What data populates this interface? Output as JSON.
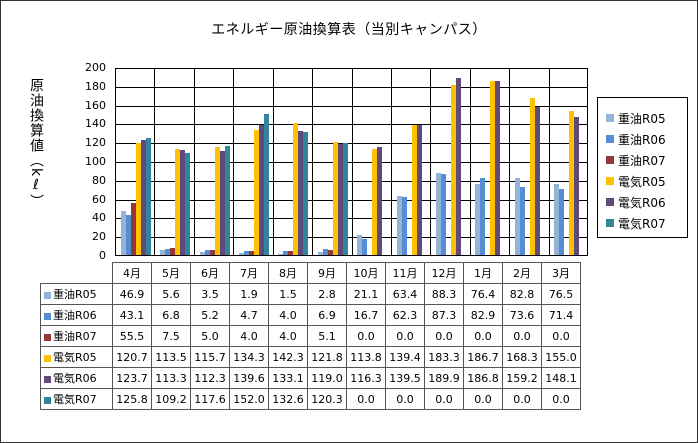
{
  "title": "エネルギー原油換算表（当別キャンパス）",
  "y_axis_label": "原油換算値（kℓ）",
  "y_ticks": [
    "200",
    "180",
    "160",
    "140",
    "120",
    "100",
    "80",
    "60",
    "40",
    "20",
    "0"
  ],
  "chart_data": {
    "type": "bar",
    "title": "エネルギー原油換算表（当別キャンパス）",
    "xlabel": "",
    "ylabel": "原油換算値（kℓ）",
    "ylim": [
      0,
      200
    ],
    "grid": true,
    "legend_position": "right",
    "categories": [
      "4月",
      "5月",
      "6月",
      "7月",
      "8月",
      "9月",
      "10月",
      "11月",
      "12月",
      "1月",
      "2月",
      "3月"
    ],
    "series": [
      {
        "name": "重油R05",
        "color": "#95B3D7",
        "values": [
          46.9,
          5.6,
          3.5,
          1.9,
          1.5,
          2.8,
          21.1,
          63.4,
          88.3,
          76.4,
          82.8,
          76.5
        ]
      },
      {
        "name": "重油R06",
        "color": "#558ED5",
        "values": [
          43.1,
          6.8,
          5.2,
          4.7,
          4.0,
          6.9,
          16.7,
          62.3,
          87.3,
          82.9,
          73.6,
          71.4
        ]
      },
      {
        "name": "重油R07",
        "color": "#953735",
        "values": [
          55.5,
          7.5,
          5.0,
          4.0,
          4.0,
          5.1,
          0.0,
          0.0,
          0.0,
          0.0,
          0.0,
          0.0
        ]
      },
      {
        "name": "電気R05",
        "color": "#FFC000",
        "values": [
          120.7,
          113.5,
          115.7,
          134.3,
          142.3,
          121.8,
          113.8,
          139.4,
          183.3,
          186.7,
          168.3,
          155.0
        ]
      },
      {
        "name": "電気R06",
        "color": "#604A7B",
        "values": [
          123.7,
          113.3,
          112.3,
          139.6,
          133.1,
          119.0,
          116.3,
          139.5,
          189.9,
          186.8,
          159.2,
          148.1
        ]
      },
      {
        "name": "電気R07",
        "color": "#31849B",
        "values": [
          125.8,
          109.2,
          117.6,
          152.0,
          132.6,
          120.3,
          0.0,
          0.0,
          0.0,
          0.0,
          0.0,
          0.0
        ]
      }
    ]
  },
  "table": {
    "columns": [
      "4月",
      "5月",
      "6月",
      "7月",
      "8月",
      "9月",
      "10月",
      "11月",
      "12月",
      "1月",
      "2月",
      "3月"
    ],
    "rows": [
      {
        "label": "重油R05",
        "color": "#95B3D7",
        "cells": [
          "46.9",
          "5.6",
          "3.5",
          "1.9",
          "1.5",
          "2.8",
          "21.1",
          "63.4",
          "88.3",
          "76.4",
          "82.8",
          "76.5"
        ]
      },
      {
        "label": "重油R06",
        "color": "#558ED5",
        "cells": [
          "43.1",
          "6.8",
          "5.2",
          "4.7",
          "4.0",
          "6.9",
          "16.7",
          "62.3",
          "87.3",
          "82.9",
          "73.6",
          "71.4"
        ]
      },
      {
        "label": "重油R07",
        "color": "#953735",
        "cells": [
          "55.5",
          "7.5",
          "5.0",
          "4.0",
          "4.0",
          "5.1",
          "0.0",
          "0.0",
          "0.0",
          "0.0",
          "0.0",
          "0.0"
        ]
      },
      {
        "label": "電気R05",
        "color": "#FFC000",
        "cells": [
          "120.7",
          "113.5",
          "115.7",
          "134.3",
          "142.3",
          "121.8",
          "113.8",
          "139.4",
          "183.3",
          "186.7",
          "168.3",
          "155.0"
        ]
      },
      {
        "label": "電気R06",
        "color": "#604A7B",
        "cells": [
          "123.7",
          "113.3",
          "112.3",
          "139.6",
          "133.1",
          "119.0",
          "116.3",
          "139.5",
          "189.9",
          "186.8",
          "159.2",
          "148.1"
        ]
      },
      {
        "label": "電気R07",
        "color": "#31849B",
        "cells": [
          "125.8",
          "109.2",
          "117.6",
          "152.0",
          "132.6",
          "120.3",
          "0.0",
          "0.0",
          "0.0",
          "0.0",
          "0.0",
          "0.0"
        ]
      }
    ]
  }
}
